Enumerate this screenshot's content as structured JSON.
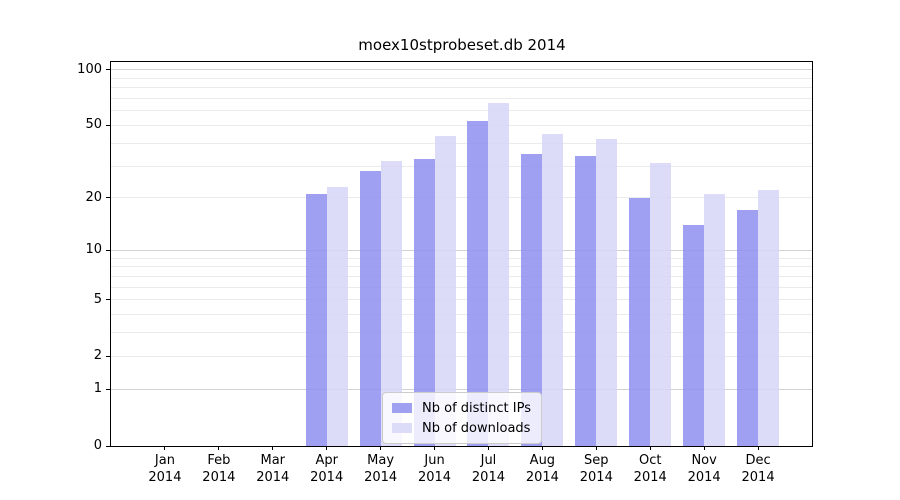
{
  "title": "moex10stprobeset.db 2014",
  "chart_data": {
    "type": "bar",
    "title": "moex10stprobeset.db 2014",
    "xlabel": "",
    "ylabel": "",
    "categories": [
      "Jan 2014",
      "Feb 2014",
      "Mar 2014",
      "Apr 2014",
      "May 2014",
      "Jun 2014",
      "Jul 2014",
      "Aug 2014",
      "Sep 2014",
      "Oct 2014",
      "Nov 2014",
      "Dec 2014"
    ],
    "x_tick_labels": [
      {
        "line1": "Jan",
        "line2": "2014"
      },
      {
        "line1": "Feb",
        "line2": "2014"
      },
      {
        "line1": "Mar",
        "line2": "2014"
      },
      {
        "line1": "Apr",
        "line2": "2014"
      },
      {
        "line1": "May",
        "line2": "2014"
      },
      {
        "line1": "Jun",
        "line2": "2014"
      },
      {
        "line1": "Jul",
        "line2": "2014"
      },
      {
        "line1": "Aug",
        "line2": "2014"
      },
      {
        "line1": "Sep",
        "line2": "2014"
      },
      {
        "line1": "Oct",
        "line2": "2014"
      },
      {
        "line1": "Nov",
        "line2": "2014"
      },
      {
        "line1": "Dec",
        "line2": "2014"
      }
    ],
    "series": [
      {
        "name": "Nb of distinct IPs",
        "values": [
          0,
          0,
          0,
          21,
          28,
          33,
          53,
          35,
          34,
          20,
          14,
          17
        ],
        "bar_color": "#8f8ff0",
        "bar_alpha": 0.85,
        "legend_color": "#a0a0f0"
      },
      {
        "name": "Nb of downloads",
        "values": [
          0,
          0,
          0,
          23,
          32,
          44,
          66,
          45,
          42,
          31,
          21,
          22
        ],
        "bar_color": "#d6d6f8",
        "bar_alpha": 0.85,
        "legend_color": "#dcdcf9"
      }
    ],
    "y_axis": {
      "scale": "log1p",
      "ticks": [
        100,
        50,
        20,
        10,
        5,
        2,
        1,
        0
      ],
      "major_gridlines": [
        1,
        10,
        100
      ],
      "minor_gridlines": [
        2,
        3,
        4,
        5,
        6,
        7,
        8,
        9,
        20,
        30,
        40,
        50,
        60,
        70,
        80,
        90
      ],
      "max": 110
    },
    "grid": {
      "major_color": "#d2d2d2",
      "minor_color": "#ebebeb"
    },
    "legend_position": "lower center"
  },
  "colors": {
    "background": "#ffffff",
    "axis": "#000000",
    "text": "#000000"
  }
}
